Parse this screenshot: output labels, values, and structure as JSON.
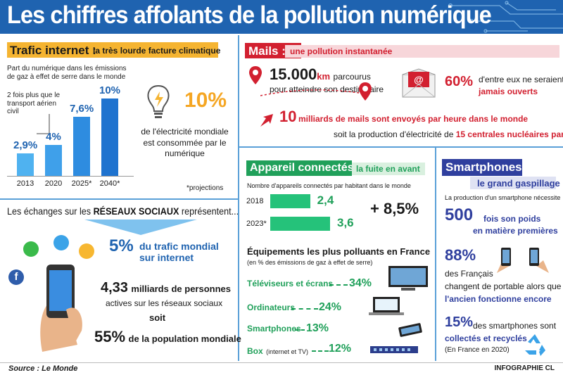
{
  "header": {
    "title": "Les chiffres affolants de la pollution numérique"
  },
  "colors": {
    "header_blue": "#1f63b0",
    "accent_red": "#d22030",
    "accent_green": "#20a05a",
    "bar_blue": "#2f8fe0",
    "label_orange": "#f5b431"
  },
  "trafic": {
    "title": "Trafic internet :",
    "subtitle": "la très lourde facture climatique",
    "chart_caption": "Part du numérique dans les émissions de gaz à effet de serre dans le monde",
    "note": "2 fois plus que le transport aérien civil",
    "elec_value": "10%",
    "elec_text": "de l'électricité mondiale est consommée par le numérique",
    "projections": "*projections"
  },
  "chart_data": {
    "type": "bar",
    "categories": [
      "2013",
      "2020",
      "2025*",
      "2040*"
    ],
    "values": [
      2.9,
      4,
      7.6,
      10
    ],
    "value_labels": [
      "2,9%",
      "4%",
      "7,6%",
      "10%"
    ],
    "ylim": [
      0,
      10
    ]
  },
  "reseaux": {
    "heading_pre": "Les échanges sur les ",
    "heading_bold": "RÉSEAUX SOCIAUX",
    "heading_post": " représentent...",
    "pct": "5%",
    "pct_text": "du trafic mondial sur internet",
    "users_value": "4,33",
    "users_unit": "milliards de personnes",
    "users_text": "actives sur les réseaux sociaux",
    "soit": "soit",
    "pop_value": "55%",
    "pop_text": "de la population mondiale"
  },
  "mails": {
    "title": "Mails :",
    "subtitle": "une pollution instantanée",
    "km_value": "15.000",
    "km_unit": "km",
    "km_text1": "parcourus",
    "km_text2": "pour atteindre son destinataire",
    "unopened_value": "60%",
    "unopened_text1": "d'entre eux ne seraient",
    "unopened_text2": "jamais ouverts",
    "billions_value": "10",
    "billions_text": "milliards de mails sont envoyés par heure dans le monde",
    "nuclear_pre": "soit la  production d'électricité de ",
    "nuclear_bold": "15 centrales nucléaires par heure"
  },
  "appareils": {
    "title": "Appareil connectés :",
    "subtitle": "la fuite en avant",
    "caption": "Nombre d'appareils connectés par habitant dans le monde",
    "rows": [
      {
        "year": "2018",
        "value": "2,4",
        "ratio": 2.4
      },
      {
        "year": "2023*",
        "value": "3,6",
        "ratio": 3.6
      }
    ],
    "growth": "+ 8,5%",
    "equip_title": "Équipements les plus polluants en France",
    "equip_caption": "(en % des émissions de gaz à effet de serre)",
    "equipments": [
      {
        "name": "Téléviseurs et écrans",
        "extra": "",
        "pct": "34%"
      },
      {
        "name": "Ordinateurs",
        "extra": "",
        "pct": "24%"
      },
      {
        "name": "Smartphones",
        "extra": "",
        "pct": "13%"
      },
      {
        "name": "Box",
        "extra": "(internet et TV)",
        "pct": "12%"
      }
    ]
  },
  "smartphones": {
    "title": "Smartphones :",
    "subtitle": "le grand gaspillage",
    "production": "La production d'un smartphone nécessite",
    "weight_value": "500",
    "weight_text1": "fois son poids",
    "weight_text2": "en matière premières",
    "change_value": "88%",
    "change_text1": "des Français",
    "change_text2": "changent de portable alors que",
    "change_text3": "l'ancien fonctionne encore",
    "recycled_value": "15%",
    "recycled_text1": "des smartphones sont",
    "recycled_text2": "collectés et recyclés",
    "recycled_text3": "(En France en 2020)"
  },
  "footer": {
    "source": "Source : Le Monde",
    "credit": "INFOGRAPHIE CL"
  }
}
